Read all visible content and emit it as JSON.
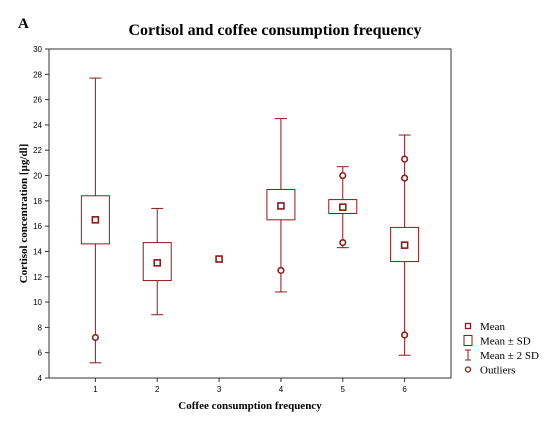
{
  "panel_label": "A",
  "colors": {
    "mark": "#8b1a1a",
    "axis": "#333333",
    "background": "#ffffff"
  },
  "chart_data": {
    "type": "box",
    "title": "Cortisol and coffee consumption frequency",
    "xlabel": "Coffee consumption frequency",
    "ylabel": "Cortisol concentration [µg/dl]",
    "ylim": [
      4,
      30
    ],
    "yticks": [
      4,
      6,
      8,
      10,
      12,
      14,
      16,
      18,
      20,
      22,
      24,
      26,
      28,
      30
    ],
    "categories": [
      "1",
      "2",
      "3",
      "4",
      "5",
      "6"
    ],
    "series": [
      {
        "category": "1",
        "mean": 16.5,
        "sd_low": 14.6,
        "sd_high": 18.4,
        "sd2_low": 5.2,
        "sd2_high": 27.7,
        "outliers": [
          7.2
        ]
      },
      {
        "category": "2",
        "mean": 13.1,
        "sd_low": 11.7,
        "sd_high": 14.7,
        "sd2_low": 9.0,
        "sd2_high": 17.4,
        "outliers": []
      },
      {
        "category": "3",
        "mean": 13.4,
        "sd_low": null,
        "sd_high": null,
        "sd2_low": null,
        "sd2_high": null,
        "outliers": []
      },
      {
        "category": "4",
        "mean": 17.6,
        "sd_low": 16.5,
        "sd_high": 18.9,
        "sd2_low": 10.8,
        "sd2_high": 24.5,
        "outliers": [
          12.5
        ]
      },
      {
        "category": "5",
        "mean": 17.5,
        "sd_low": 17.0,
        "sd_high": 18.1,
        "sd2_low": 14.3,
        "sd2_high": 20.7,
        "outliers": [
          14.7,
          20.0
        ]
      },
      {
        "category": "6",
        "mean": 14.5,
        "sd_low": 13.2,
        "sd_high": 15.9,
        "sd2_low": 5.8,
        "sd2_high": 23.2,
        "outliers": [
          7.4,
          19.8,
          21.3
        ]
      }
    ],
    "legend": {
      "position": "bottom-right",
      "items": [
        {
          "symbol": "square",
          "label": "Mean"
        },
        {
          "symbol": "box",
          "label": "Mean ± SD"
        },
        {
          "symbol": "whisker",
          "label": "Mean ± 2 SD"
        },
        {
          "symbol": "circle",
          "label": "Outliers"
        }
      ]
    },
    "grid": false
  }
}
